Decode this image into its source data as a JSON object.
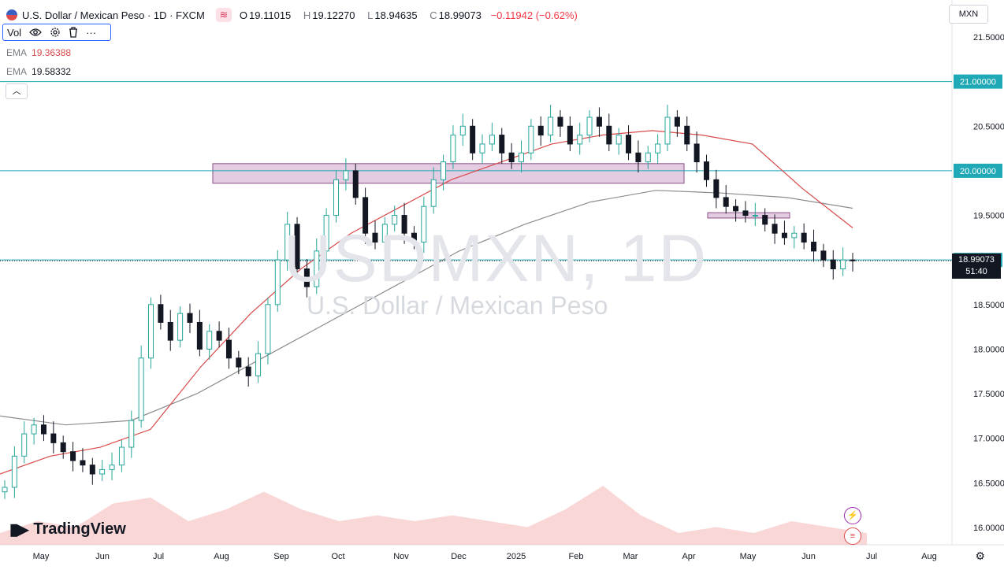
{
  "header": {
    "flag_icon": "us-mx-flag-icon",
    "title": "U.S. Dollar / Mexican Peso · 1D · FXCM",
    "indicator_icon": "wave-icon",
    "open": "19.11015",
    "high": "19.12270",
    "low": "18.94635",
    "close": "18.99073",
    "change": "−0.11942 (−0.62%)"
  },
  "volume_legend": {
    "label": "Vol",
    "more": "···"
  },
  "ema1": {
    "label": "EMA",
    "value": "19.36388",
    "color": "#d84a4a"
  },
  "ema2": {
    "label": "EMA",
    "value": "19.58332",
    "color": "#787b86"
  },
  "currency_button": "MXN",
  "watermark": {
    "symbol": "USDMXN, 1D",
    "name": "U.S. Dollar / Mexican Peso"
  },
  "branding": "TradingView",
  "current_price": {
    "value": "18.99073",
    "countdown": "51:40",
    "color": "#131722"
  },
  "colors": {
    "up": "#26a69a",
    "down": "#131722",
    "ema50": "#d84a4a",
    "ema200": "#8c8c8c",
    "zone": "#d9b8d6",
    "hline": "#1fa9b6"
  },
  "chart_data": {
    "type": "candlestick",
    "title": "U.S. Dollar / Mexican Peso · 1D · FXCM",
    "y_axis": {
      "ticks": [
        "21.50000",
        "21.00000",
        "20.50000",
        "20.00000",
        "19.50000",
        "19.00000",
        "18.50000",
        "18.00000",
        "17.50000",
        "17.00000",
        "16.50000",
        "16.00000"
      ],
      "range": [
        15.85,
        21.75
      ]
    },
    "x_axis": {
      "ticks": [
        "May",
        "Jun",
        "Jul",
        "Aug",
        "Sep",
        "Oct",
        "Nov",
        "Dec",
        "2025",
        "Feb",
        "Mar",
        "Apr",
        "May",
        "Jun",
        "Jul",
        "Aug"
      ]
    },
    "horizontal_lines": [
      {
        "label": "21.00000",
        "value": 21.0
      },
      {
        "label": "20.00000",
        "value": 20.0
      },
      {
        "label": "19.00000",
        "value": 19.0
      }
    ],
    "zones": [
      {
        "from": "Jul 2024",
        "to": "Mar 2025",
        "low": 19.86,
        "high": 20.08
      },
      {
        "from": "Apr 2025",
        "to": "May 2025",
        "low": 19.47,
        "high": 19.53
      }
    ],
    "close_series": [
      16.45,
      16.8,
      17.05,
      17.15,
      17.05,
      16.95,
      16.85,
      16.75,
      16.7,
      16.6,
      16.65,
      16.7,
      16.9,
      17.2,
      17.9,
      18.5,
      18.3,
      18.1,
      18.4,
      18.3,
      18.0,
      18.2,
      18.1,
      17.9,
      17.8,
      17.7,
      17.95,
      18.5,
      19.0,
      19.4,
      18.9,
      18.7,
      19.1,
      19.5,
      19.9,
      20.0,
      19.7,
      19.3,
      19.2,
      19.4,
      19.5,
      19.3,
      19.2,
      19.6,
      19.9,
      20.1,
      20.4,
      20.5,
      20.2,
      20.3,
      20.4,
      20.2,
      20.1,
      20.2,
      20.5,
      20.4,
      20.6,
      20.5,
      20.3,
      20.4,
      20.6,
      20.5,
      20.3,
      20.4,
      20.2,
      20.1,
      20.2,
      20.3,
      20.6,
      20.5,
      20.3,
      20.1,
      19.9,
      19.7,
      19.6,
      19.55,
      19.5,
      19.5,
      19.4,
      19.3,
      19.25,
      19.3,
      19.2,
      19.1,
      19.0,
      18.9,
      19.0,
      18.99
    ],
    "ema50": [
      16.6,
      16.8,
      16.9,
      17.1,
      17.8,
      18.4,
      18.9,
      19.3,
      19.6,
      19.9,
      20.1,
      20.3,
      20.4,
      20.45,
      20.4,
      20.3,
      19.8,
      19.36
    ],
    "ema200": [
      17.25,
      17.15,
      17.2,
      17.5,
      17.9,
      18.3,
      18.7,
      19.1,
      19.4,
      19.65,
      19.78,
      19.75,
      19.7,
      19.58
    ],
    "volume": [
      0.1,
      0.2,
      0.15,
      0.35,
      0.4,
      0.2,
      0.3,
      0.45,
      0.3,
      0.2,
      0.25,
      0.2,
      0.25,
      0.2,
      0.15,
      0.3,
      0.5,
      0.25,
      0.1,
      0.15,
      0.1,
      0.2,
      0.15,
      0.1
    ],
    "annotation": "⚡"
  }
}
